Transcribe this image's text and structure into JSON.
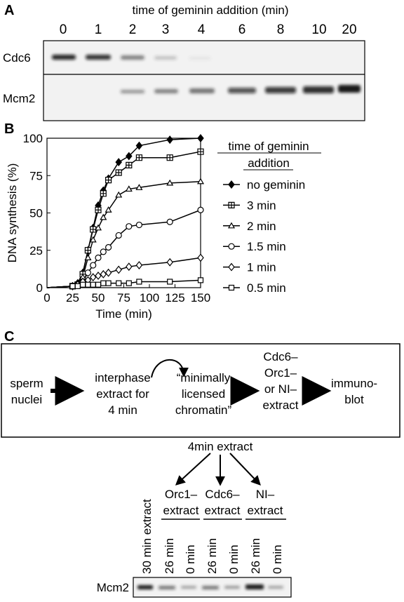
{
  "panel_a": {
    "label": "A",
    "title": "time of geminin addition (min)",
    "lanes": [
      "0",
      "1",
      "2",
      "3",
      "4",
      "6",
      "8",
      "10",
      "20"
    ],
    "rows": [
      "Cdc6",
      "Mcm2"
    ]
  },
  "chart_data": {
    "type": "line",
    "label": "B",
    "xlabel": "Time (min)",
    "ylabel": "DNA synthesis (%)",
    "legend_title": [
      "time of geminin",
      "addition"
    ],
    "x": [
      0,
      25,
      30,
      35,
      40,
      45,
      50,
      55,
      60,
      70,
      80,
      90,
      120,
      150
    ],
    "xlim": [
      0,
      150
    ],
    "xticks": [
      0,
      25,
      50,
      75,
      100,
      125,
      150
    ],
    "ylim": [
      0,
      100
    ],
    "yticks": [
      0,
      25,
      50,
      75,
      100
    ],
    "series": [
      {
        "name": "no geminin",
        "color": "#000000",
        "marker": "filled-diamond",
        "values": [
          0,
          1,
          3,
          10,
          25,
          40,
          55,
          65,
          73,
          84,
          88,
          95,
          99,
          100
        ]
      },
      {
        "name": "3 min",
        "color": "#000000",
        "marker": "square-plus",
        "values": [
          0,
          1,
          2,
          9,
          25,
          39,
          52,
          63,
          72,
          77,
          82,
          87,
          87,
          91
        ]
      },
      {
        "name": "2 min",
        "color": "#000000",
        "marker": "triangle",
        "values": [
          0,
          1,
          2,
          7,
          20,
          32,
          40,
          47,
          52,
          62,
          66,
          67,
          70,
          71
        ]
      },
      {
        "name": "1.5 min",
        "color": "#000000",
        "marker": "circle",
        "values": [
          0,
          1,
          2,
          4,
          10,
          15,
          20,
          24,
          27,
          35,
          41,
          42,
          44,
          52
        ]
      },
      {
        "name": "1 min",
        "color": "#000000",
        "marker": "diamond",
        "values": [
          0,
          1,
          2,
          4,
          5,
          7,
          8,
          9,
          10,
          12,
          14,
          15,
          17,
          20
        ]
      },
      {
        "name": "0.5 min",
        "color": "#000000",
        "marker": "square",
        "values": [
          0,
          1,
          1,
          2,
          2,
          2,
          2,
          3,
          3,
          3,
          3,
          4,
          4,
          5
        ]
      }
    ]
  },
  "panel_c": {
    "label": "C",
    "steps": [
      [
        "sperm",
        "nuclei"
      ],
      [
        "interphase",
        "extract for",
        "4 min"
      ],
      [
        "“minimally",
        "licensed",
        "chromatin”"
      ],
      [
        "Cdc6–",
        "Orc1–",
        "or NI–",
        "extract"
      ],
      [
        "immuno-",
        "blot"
      ]
    ],
    "source": "4min extract",
    "branches": [
      [
        "Orc1–",
        "extract"
      ],
      [
        "Cdc6–",
        "extract"
      ],
      [
        "NI–",
        "extract"
      ]
    ],
    "lanes": [
      "30 min extract",
      "26 min",
      "0 min",
      "26 min",
      "0 min",
      "26 min",
      "0 min"
    ],
    "row": "Mcm2"
  }
}
